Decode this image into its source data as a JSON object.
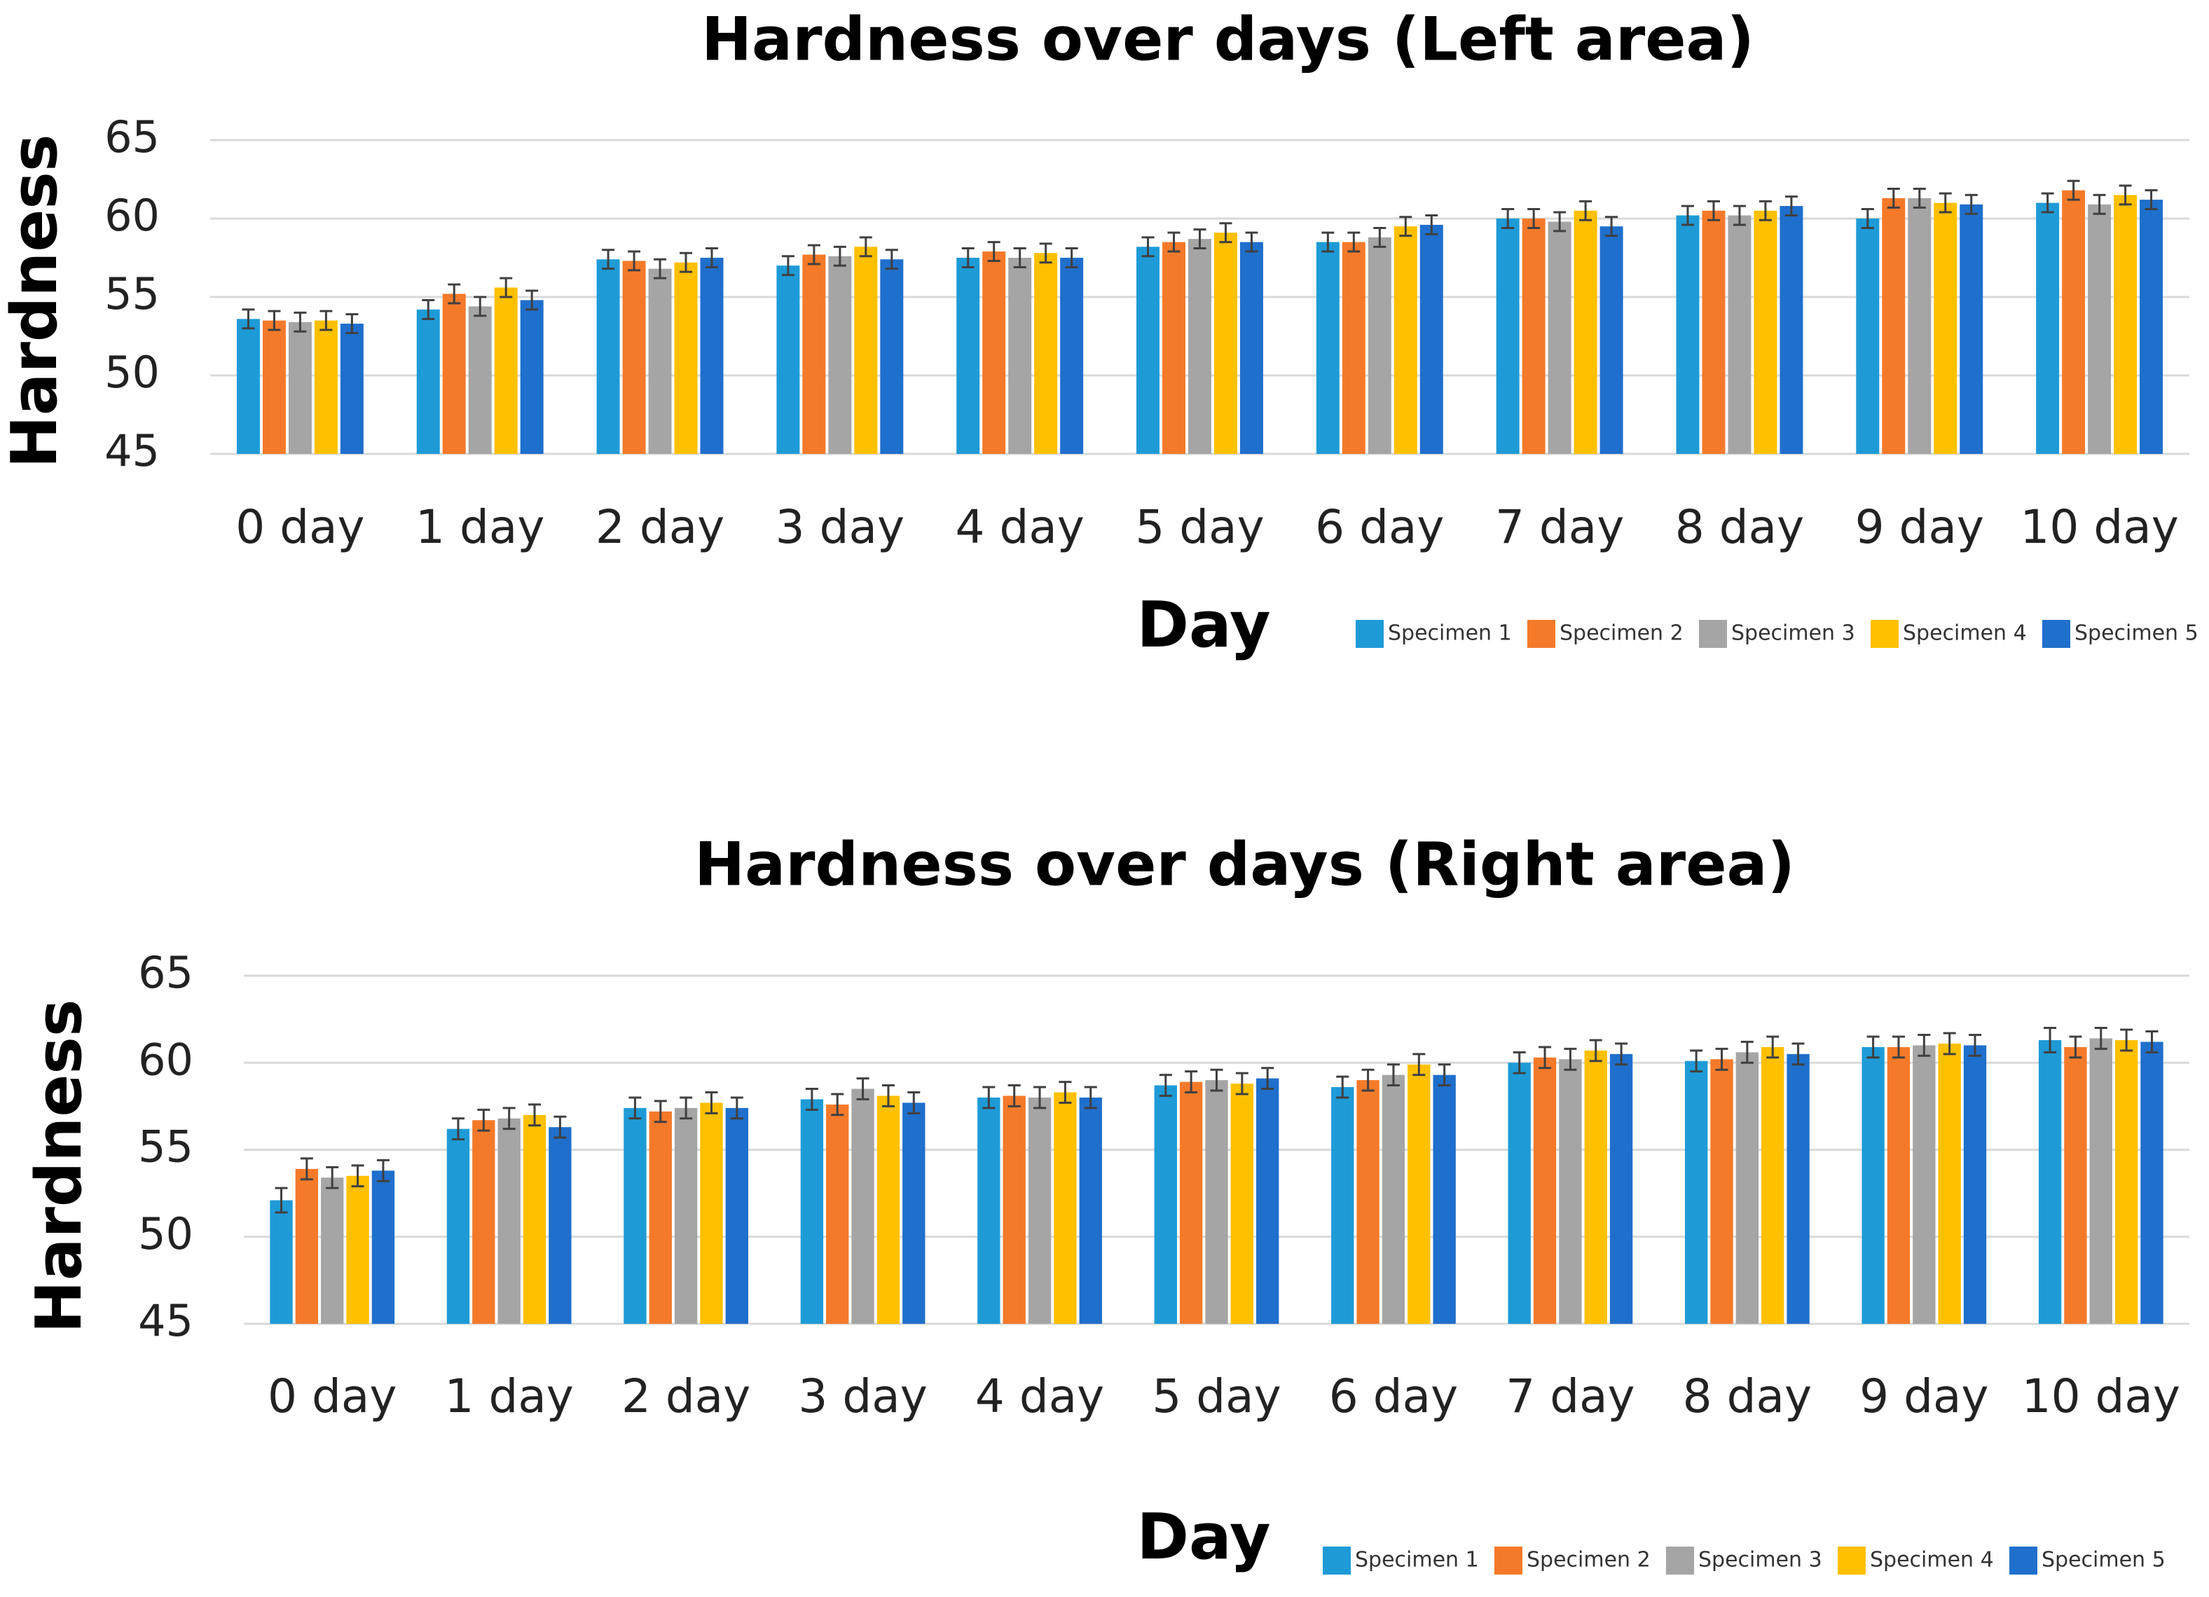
{
  "chart_data": [
    {
      "type": "bar",
      "title": "Hardness over days (Left area)",
      "x_label": "Day",
      "y_label": "Hardness",
      "categories": [
        "0 day",
        "1 day",
        "2 day",
        "3 day",
        "4 day",
        "5 day",
        "6 day",
        "7 day",
        "8 day",
        "9 day",
        "10 day"
      ],
      "ylim": [
        45,
        65
      ],
      "yticks": [
        45,
        50,
        55,
        60,
        65
      ],
      "grid": true,
      "legend": "bottom right",
      "series": [
        {
          "name": "Specimen 1",
          "color": "#1e9bd7",
          "values": [
            53.6,
            54.2,
            57.4,
            57.0,
            57.5,
            58.2,
            58.5,
            60.0,
            60.2,
            60.0,
            61.0
          ],
          "errors": [
            0.6,
            0.6,
            0.6,
            0.6,
            0.6,
            0.6,
            0.6,
            0.6,
            0.6,
            0.6,
            0.6
          ]
        },
        {
          "name": "Specimen 2",
          "color": "#f47a2a",
          "values": [
            53.5,
            55.2,
            57.3,
            57.7,
            57.9,
            58.5,
            58.5,
            60.0,
            60.5,
            61.3,
            61.8
          ],
          "errors": [
            0.6,
            0.6,
            0.6,
            0.6,
            0.6,
            0.6,
            0.6,
            0.6,
            0.6,
            0.6,
            0.6
          ]
        },
        {
          "name": "Specimen 3",
          "color": "#a5a5a5",
          "values": [
            53.4,
            54.4,
            56.8,
            57.6,
            57.5,
            58.7,
            58.8,
            59.8,
            60.2,
            61.3,
            60.9
          ],
          "errors": [
            0.6,
            0.6,
            0.6,
            0.6,
            0.6,
            0.6,
            0.6,
            0.6,
            0.6,
            0.6,
            0.6
          ]
        },
        {
          "name": "Specimen 4",
          "color": "#ffc000",
          "values": [
            53.5,
            55.6,
            57.2,
            58.2,
            57.8,
            59.1,
            59.5,
            60.5,
            60.5,
            61.0,
            61.5
          ],
          "errors": [
            0.6,
            0.6,
            0.6,
            0.6,
            0.6,
            0.6,
            0.6,
            0.6,
            0.6,
            0.6,
            0.6
          ]
        },
        {
          "name": "Specimen 5",
          "color": "#1f6fcc",
          "values": [
            53.3,
            54.8,
            57.5,
            57.4,
            57.5,
            58.5,
            59.6,
            59.5,
            60.8,
            60.9,
            61.2
          ],
          "errors": [
            0.6,
            0.6,
            0.6,
            0.6,
            0.6,
            0.6,
            0.6,
            0.6,
            0.6,
            0.6,
            0.6
          ]
        }
      ]
    },
    {
      "type": "bar",
      "title": "Hardness over days (Right area)",
      "x_label": "Day",
      "y_label": "Hardness",
      "categories": [
        "0 day",
        "1 day",
        "2 day",
        "3 day",
        "4 day",
        "5 day",
        "6 day",
        "7 day",
        "8 day",
        "9 day",
        "10 day"
      ],
      "ylim": [
        45,
        65
      ],
      "yticks": [
        45,
        50,
        55,
        60,
        65
      ],
      "grid": true,
      "legend": "bottom right",
      "series": [
        {
          "name": "Specimen 1",
          "color": "#1e9bd7",
          "values": [
            52.1,
            56.2,
            57.4,
            57.9,
            58.0,
            58.7,
            58.6,
            60.0,
            60.1,
            60.9,
            61.3
          ],
          "errors": [
            0.7,
            0.6,
            0.6,
            0.6,
            0.6,
            0.6,
            0.6,
            0.6,
            0.6,
            0.6,
            0.7
          ]
        },
        {
          "name": "Specimen 2",
          "color": "#f47a2a",
          "values": [
            53.9,
            56.7,
            57.2,
            57.6,
            58.1,
            58.9,
            59.0,
            60.3,
            60.2,
            60.9,
            60.9
          ],
          "errors": [
            0.6,
            0.6,
            0.6,
            0.6,
            0.6,
            0.6,
            0.6,
            0.6,
            0.6,
            0.6,
            0.6
          ]
        },
        {
          "name": "Specimen 3",
          "color": "#a5a5a5",
          "values": [
            53.4,
            56.8,
            57.4,
            58.5,
            58.0,
            59.0,
            59.3,
            60.2,
            60.6,
            61.0,
            61.4
          ],
          "errors": [
            0.6,
            0.6,
            0.6,
            0.6,
            0.6,
            0.6,
            0.6,
            0.6,
            0.6,
            0.6,
            0.6
          ]
        },
        {
          "name": "Specimen 4",
          "color": "#ffc000",
          "values": [
            53.5,
            57.0,
            57.7,
            58.1,
            58.3,
            58.8,
            59.9,
            60.7,
            60.9,
            61.1,
            61.3
          ],
          "errors": [
            0.6,
            0.6,
            0.6,
            0.6,
            0.6,
            0.6,
            0.6,
            0.6,
            0.6,
            0.6,
            0.6
          ]
        },
        {
          "name": "Specimen 5",
          "color": "#1f6fcc",
          "values": [
            53.8,
            56.3,
            57.4,
            57.7,
            58.0,
            59.1,
            59.3,
            60.5,
            60.5,
            61.0,
            61.2
          ],
          "errors": [
            0.6,
            0.6,
            0.6,
            0.6,
            0.6,
            0.6,
            0.6,
            0.6,
            0.6,
            0.6,
            0.6
          ]
        }
      ]
    }
  ]
}
